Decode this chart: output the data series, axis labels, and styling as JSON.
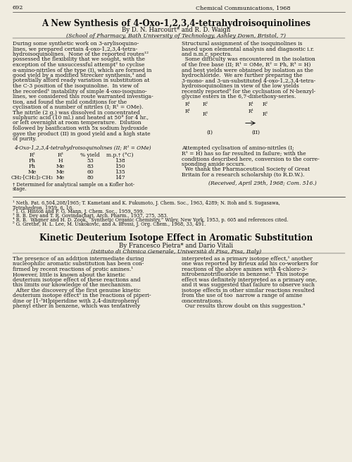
{
  "bg_color": "#f0ece0",
  "text_color": "#111111",
  "page_number": "692",
  "journal_header": "Chemical Communications, 1968",
  "title1": "A New Synthesis of 4-Oxo-1,2,3,4-tetrahydroisoquinolines",
  "authors1": "By D. N. Harcourt* and R. D. Waigh",
  "affil1": "(School of Pharmacy, Bath University of Technology, Ashley Down, Bristol, 7)",
  "body_left1": [
    "During some synthetic work on 3-arylisoquino-",
    "lines, we prepared certain 4-oxo-1,2,3,4-tetra-",
    "hydroisoquinolines.  None of the reported routes¹²",
    "possessed the flexibility that we sought, with the",
    "exception of the unsuccessful attempt² to cyclise",
    "α-amino-nitriles of the type (I), which are formed in",
    "good yield by a modified Strecker synthesis,³ and",
    "potentially afford ready variation in substitution at",
    "the C-3 position of the isoquinoline.  In view of",
    "the recorded¹ instability of simple 4-oxo-isoquino-",
    "lines, we considered this route warranted investiga-",
    "tion, and found the mild conditions for the",
    "cyclisation of a number of nitriles (I; R¹ = OMe).",
    "The nitrile (2 g.) was dissolved in concentrated",
    "sulphuric acid (10 ml.) and heated at 50° for 4 hr.,",
    "or left overnight at room temperature.  Dilution",
    "followed by basification with 5x sodium hydroxide",
    "gave the product (II) in good yield and a high state",
    "of purity."
  ],
  "body_right1_top": [
    "Structural assignment of the isoquinolines is",
    "based upon elemental analysis and diagnostic i.r.",
    "and n.m.r. spectra.",
    "  Some difficulty was encountered in the isolation",
    "of the free base (II; R¹ = OMe, R² = Ph, R³ = H)",
    "and best yields were obtained by isolation as the",
    "hydrochloride.  We are further preparing the",
    "3-mono- and 3-un-substituted 4-oxo-1,2,3,4-tetra-",
    "hydroisoquinolines in view of the low yields",
    "recently reported⁵ for the cyclisation of N-benzyl-",
    "glycine esters in the 6,7-dimethoxy-series."
  ],
  "body_right1_bot": [
    "Attempted cyclisation of amino-nitriles (I;",
    "R¹ = H) has so far resulted in failure; with the",
    "conditions described here, conversion to the corre-",
    "sponding amide occurs.",
    "  We thank the Pharmaceutical Society of Great",
    "Britain for a research scholarship (to R.D.W.)."
  ],
  "received": "(Received, April 29th, 1968; Com. 516.)",
  "table_title": "4-Oxo-1,2,3,4-tetrahydroisoquinolines (II; R¹ = OMe)",
  "table_headers": [
    "R²",
    "R³",
    "% yield",
    "m.p.† (°C)"
  ],
  "table_rows": [
    [
      "Ph",
      "H",
      "53",
      "138"
    ],
    [
      "Ph",
      "Me",
      "83",
      "150"
    ],
    [
      "Me",
      "Me",
      "60",
      "135"
    ],
    [
      "CH₂·[CH₂]₃·CH₃",
      "Me",
      "80",
      "147"
    ]
  ],
  "table_footnote1": "† Determined for analytical sample on a Kofler hot-",
  "table_footnote2": "stage.",
  "refs1": [
    "¹ Neth. Pat. 6,504,208/1965; T. Kametani and K. Fukumoto, J. Chem. Soc., 1963, 4289; N. Itoh and S. Sugasawa,",
    "Tetrahedron, 1959, 6, 16.",
    "² I. G. Hinton and F. G. Mann, J. Chem. Soc., 1959, 599.",
    "³ B. B. Dey and T. R. Govindachari, Arch. Pharm., 1937, 275, 383.",
    "⁴ R. B.  Wagner and H. D. Zook, “Synthetic Organic Chemistry,” Wiley, New York, 1953, p. 605 and references cited.",
    "⁵ G. Grethe, H. L. Lee, M. Uskokovic, and A. Brossi, J. Org. Chem., 1968, 33, 491."
  ],
  "title2": "Kinetic Deuterium Isotope Effect in Aromatic Substitution",
  "authors2": "By Francesco Pietra* and Dario Vitali",
  "affil2": "(Istituto di Chimica Generale, Università di Pisa, Pisa, Italy)",
  "body_left2": [
    "The presence of an addition intermediate during",
    "nucleophilic aromatic substitution has been con-",
    "firmed by recent reactions of protic amines.¹",
    "However, little is known about the kinetic",
    "deuterium isotope effect of these reactions and",
    "this limits our knowledge of the mechanism.",
    "  After the discovery of the first genuine kinetic",
    "deuterium isotope effect² in the reactions of piperi-",
    "dine or [1-³H]piperidine with 2,4-dinitrophenyl",
    "phenyl ether in benzene, which was tentatively"
  ],
  "body_right2": [
    "interpreted as a primary isotope effect,¹ another",
    "one was reported by Brieux and his co-workers for",
    "reactions of the above amines with 4-chloro-3-",
    "nitrobenzotrifluoride in benzene.³  This isotope",
    "effect was definitely interpreted as a primary one,",
    "and it was suggested that failure to observe such",
    "isotope effects in other similar reactions resulted",
    "from the use of too  narrow a range of amine",
    "concentrations.",
    "  Our results throw doubt on this suggestion.⁴"
  ]
}
